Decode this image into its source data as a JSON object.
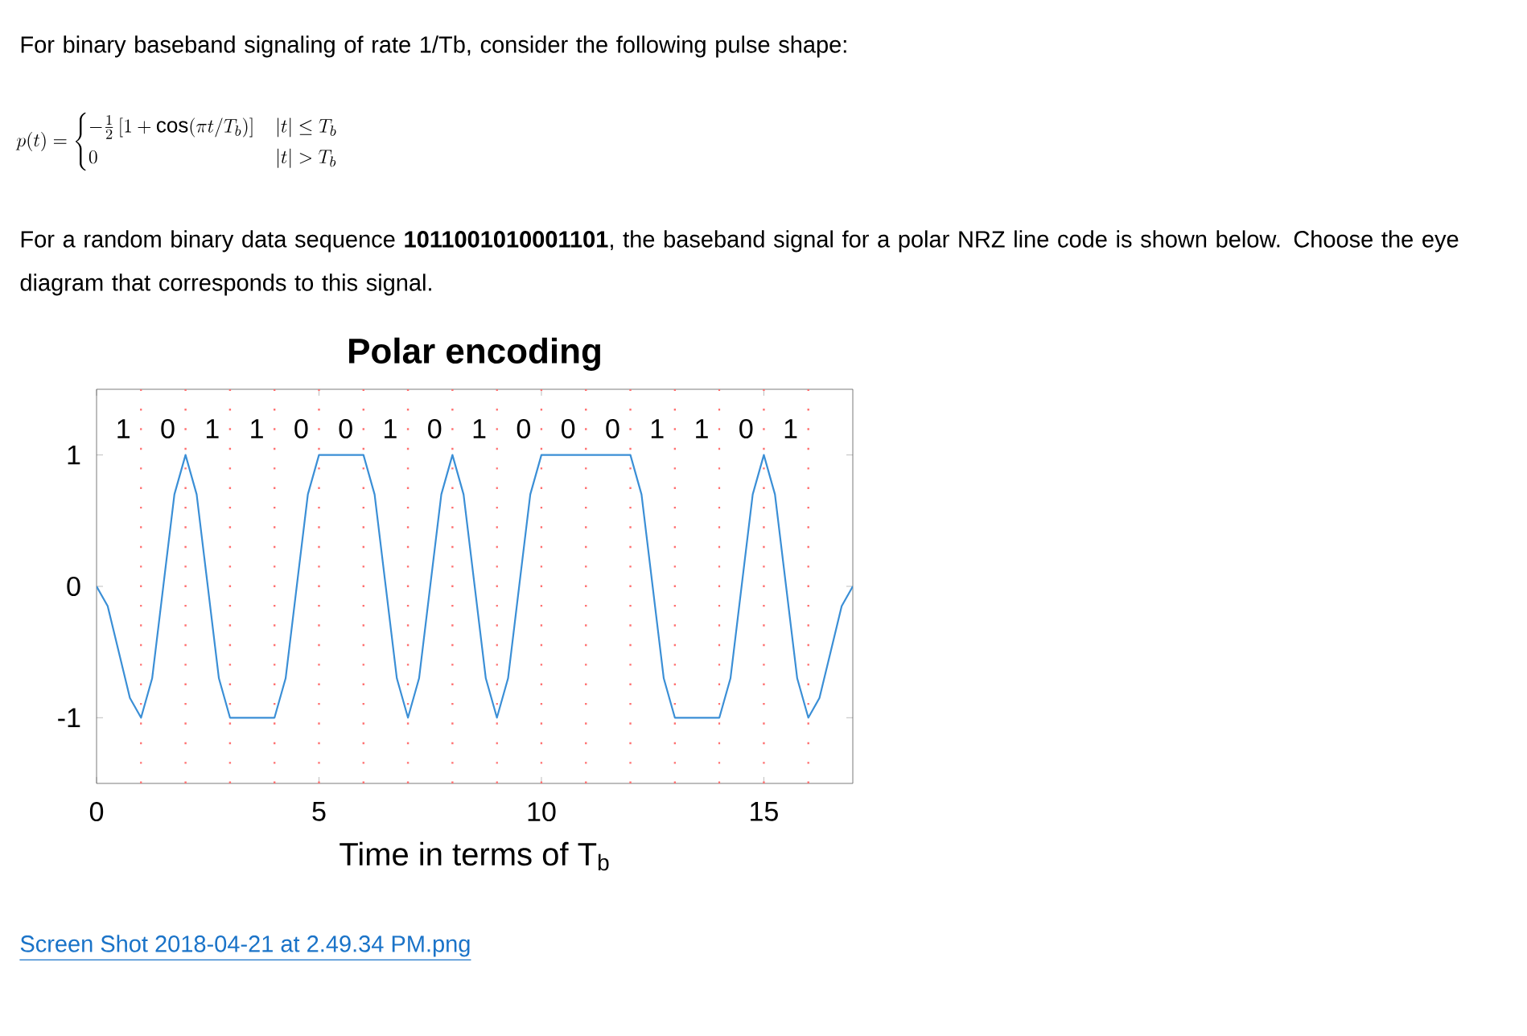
{
  "chart_data": {
    "type": "line",
    "title": "Polar encoding",
    "xlabel": "Time in terms of T$_{b}$",
    "xlim": [
      0,
      17
    ],
    "ylim": [
      -1.5,
      1.5
    ],
    "xticks": [
      0,
      5,
      10,
      15
    ],
    "yticks": [
      -1,
      0,
      1
    ],
    "color": "#3b8fd6",
    "x": [
      0,
      0.25,
      0.5,
      0.75,
      1,
      1.25,
      1.5,
      1.75,
      2,
      2.25,
      2.5,
      2.75,
      3,
      3.25,
      3.5,
      3.75,
      4,
      4.25,
      4.5,
      4.75,
      5,
      5.25,
      5.5,
      5.75,
      6,
      6.25,
      6.5,
      6.75,
      7,
      7.25,
      7.5,
      7.75,
      8,
      8.25,
      8.5,
      8.75,
      9,
      9.25,
      9.5,
      9.75,
      10,
      10.25,
      10.5,
      10.75,
      11,
      11.25,
      11.5,
      11.75,
      12,
      12.25,
      12.5,
      12.75,
      13,
      13.25,
      13.5,
      13.75,
      14,
      14.25,
      14.5,
      14.75,
      15,
      15.25,
      15.5,
      15.75,
      16,
      16.25,
      16.5,
      16.75,
      17
    ],
    "values": [
      0,
      -0.15,
      -0.5,
      -0.85,
      -1,
      -0.7,
      0,
      0.7,
      1,
      0.7,
      0,
      -0.7,
      -1,
      -1,
      -1,
      -1,
      -1,
      -0.7,
      0,
      0.7,
      1,
      1,
      1,
      1,
      1,
      0.7,
      0,
      -0.7,
      -1,
      -0.7,
      0,
      0.7,
      1,
      0.7,
      0,
      -0.7,
      -1,
      -0.7,
      0,
      0.7,
      1,
      1,
      1,
      1,
      1,
      1,
      1,
      1,
      1,
      0.7,
      0,
      -0.7,
      -1,
      -1,
      -1,
      -1,
      -1,
      -0.7,
      0,
      0.7,
      1,
      0.7,
      0,
      -0.7,
      -1,
      -0.85,
      -0.5,
      -0.15,
      0
    ],
    "ref_lines": [
      {
        "axis": "x",
        "value": 1,
        "color": "#ff7070",
        "line_style": "dotted"
      },
      {
        "axis": "x",
        "value": 2,
        "color": "#ff7070",
        "line_style": "dotted"
      },
      {
        "axis": "x",
        "value": 3,
        "color": "#ff7070",
        "line_style": "dotted"
      },
      {
        "axis": "x",
        "value": 4,
        "color": "#ff7070",
        "line_style": "dotted"
      },
      {
        "axis": "x",
        "value": 5,
        "color": "#ff7070",
        "line_style": "dotted"
      },
      {
        "axis": "x",
        "value": 6,
        "color": "#ff7070",
        "line_style": "dotted"
      },
      {
        "axis": "x",
        "value": 7,
        "color": "#ff7070",
        "line_style": "dotted"
      },
      {
        "axis": "x",
        "value": 8,
        "color": "#ff7070",
        "line_style": "dotted"
      },
      {
        "axis": "x",
        "value": 9,
        "color": "#ff7070",
        "line_style": "dotted"
      },
      {
        "axis": "x",
        "value": 10,
        "color": "#ff7070",
        "line_style": "dotted"
      },
      {
        "axis": "x",
        "value": 11,
        "color": "#ff7070",
        "line_style": "dotted"
      },
      {
        "axis": "x",
        "value": 12,
        "color": "#ff7070",
        "line_style": "dotted"
      },
      {
        "axis": "x",
        "value": 13,
        "color": "#ff7070",
        "line_style": "dotted"
      },
      {
        "axis": "x",
        "value": 14,
        "color": "#ff7070",
        "line_style": "dotted"
      },
      {
        "axis": "x",
        "value": 15,
        "color": "#ff7070",
        "line_style": "dotted"
      },
      {
        "axis": "x",
        "value": 16,
        "color": "#ff7070",
        "line_style": "dotted"
      }
    ],
    "annotations": [
      "For binary baseband signaling of rate 1/Tb, consider the following pulse shape:",
      "p(t)=\\begin{cases}-\\frac{1}{2}\\left[1+\\cos(\\pi t/T_b)\\right] & |t|\\le T_b\\\\ 0 & |t|>T_b\\end{cases}",
      "For a random binary data sequence **1011001010001101**, the baseband signal for a polar NRZ line code is shown below. Choose the eye diagram that corresponds to this signal.",
      "Screen Shot 2018-04-21 at 2.49.34 PM.png",
      "1",
      "0",
      "1",
      "1",
      "0",
      "0",
      "1",
      "0",
      "1",
      "0",
      "0",
      "0",
      "1",
      "1",
      "0",
      "1"
    ]
  }
}
